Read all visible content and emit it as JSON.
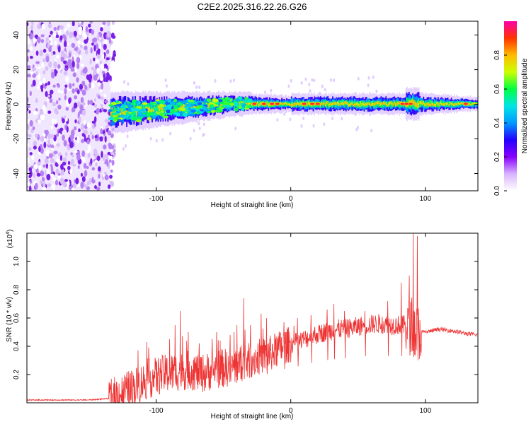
{
  "title": "C2E2.2025.316.22.26.G26",
  "colors": {
    "snr_line": "#ee3333",
    "colormap": [
      "#ffffff",
      "#d9b3ff",
      "#8800ff",
      "#2200ff",
      "#0099ff",
      "#00e5e5",
      "#00ff44",
      "#ccff00",
      "#ffbb00",
      "#ff3300",
      "#ff00aa"
    ]
  },
  "chart_data": [
    {
      "id": "spectrogram",
      "type": "heatmap",
      "xlabel": "Height of straight line (km)",
      "ylabel": "Frequency (Hz)",
      "xlim": [
        -196,
        139
      ],
      "ylim": [
        -50,
        48
      ],
      "xticks": [
        -100,
        0,
        100
      ],
      "xtick_labels": [
        "-100",
        "0",
        "100"
      ],
      "yticks": [
        -40,
        -20,
        0,
        20,
        40
      ],
      "ytick_labels": [
        "-40",
        "-20",
        "0",
        "20",
        "40"
      ],
      "noise_region_x": [
        -196,
        -134
      ],
      "signal_start_x": -134,
      "peak_marks_x": [
        -27,
        -20,
        -14,
        -10,
        10,
        16,
        20,
        83,
        86,
        89,
        130
      ],
      "colorbar": {
        "label": "Normalized spectral amplitude",
        "range": [
          0,
          1
        ],
        "ticks": [
          0.0,
          0.2,
          0.4,
          0.6,
          0.8
        ],
        "tick_labels": [
          "0.0",
          "0.2",
          "0.4",
          "0.6",
          "0.8"
        ]
      }
    },
    {
      "id": "snr",
      "type": "line",
      "xlabel": "Height of straight line (km)",
      "ylabel": "SNR (10 * v/v)",
      "y_multiplier": "(x10",
      "y_multiplier_exp": "4",
      "y_multiplier_close": ")",
      "xlim": [
        -196,
        139
      ],
      "ylim": [
        0,
        1.2
      ],
      "xticks": [
        -100,
        0,
        100
      ],
      "xtick_labels": [
        "-100",
        "0",
        "100"
      ],
      "yticks": [
        0.2,
        0.4,
        0.6,
        0.8,
        1.0
      ],
      "ytick_labels": [
        "0.2",
        "0.4",
        "0.6",
        "0.8",
        "1.0"
      ],
      "envelope": {
        "x": [
          -196,
          -150,
          -135,
          -125,
          -115,
          -105,
          -95,
          -85,
          -75,
          -65,
          -55,
          -45,
          -35,
          -25,
          -15,
          -5,
          5,
          15,
          25,
          35,
          45,
          55,
          65,
          75,
          85,
          90,
          93,
          96,
          100,
          110,
          120,
          130,
          139
        ],
        "y": [
          0.02,
          0.02,
          0.03,
          0.07,
          0.12,
          0.17,
          0.2,
          0.22,
          0.23,
          0.21,
          0.24,
          0.25,
          0.28,
          0.32,
          0.35,
          0.4,
          0.43,
          0.47,
          0.5,
          0.52,
          0.53,
          0.55,
          0.56,
          0.55,
          0.55,
          0.56,
          0.5,
          0.5,
          0.5,
          0.52,
          0.51,
          0.49,
          0.48
        ]
      },
      "peaks": [
        {
          "x": -90,
          "y": 0.45
        },
        {
          "x": -86,
          "y": 0.55
        },
        {
          "x": -82,
          "y": 0.65
        },
        {
          "x": -76,
          "y": 0.5
        },
        {
          "x": -68,
          "y": 0.42
        },
        {
          "x": -55,
          "y": 0.5
        },
        {
          "x": -45,
          "y": 0.48
        },
        {
          "x": -40,
          "y": 0.55
        },
        {
          "x": -35,
          "y": 0.74
        },
        {
          "x": -30,
          "y": 0.55
        },
        {
          "x": -18,
          "y": 0.6
        },
        {
          "x": -5,
          "y": 0.57
        },
        {
          "x": 5,
          "y": 0.6
        },
        {
          "x": 15,
          "y": 0.62
        },
        {
          "x": 27,
          "y": 0.66
        },
        {
          "x": 32,
          "y": 0.7
        },
        {
          "x": 40,
          "y": 0.65
        },
        {
          "x": 55,
          "y": 0.65
        },
        {
          "x": 72,
          "y": 0.72
        },
        {
          "x": 82,
          "y": 0.85
        },
        {
          "x": 88,
          "y": 0.9
        },
        {
          "x": 91,
          "y": 1.2
        },
        {
          "x": 94,
          "y": 1.18
        }
      ]
    }
  ]
}
